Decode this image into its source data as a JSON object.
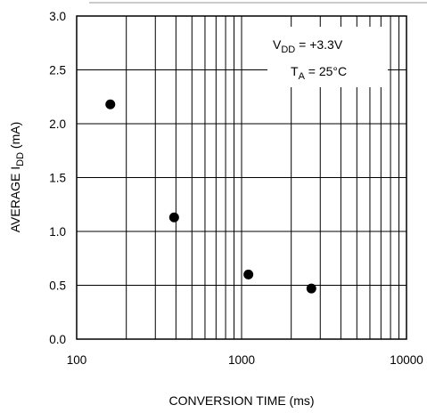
{
  "chart_data": {
    "type": "scatter",
    "x_scale": "log",
    "y_scale": "linear",
    "xlim": [
      100,
      10000
    ],
    "ylim": [
      0,
      3.0
    ],
    "grid": true,
    "xlabel": "CONVERSION TIME (ms)",
    "ylabel_main": "AVERAGE I",
    "ylabel_sub": "DD",
    "ylabel_unit": " (mA)",
    "x_ticks": [
      {
        "value": 100,
        "label": "100"
      },
      {
        "value": 1000,
        "label": "1000"
      },
      {
        "value": 10000,
        "label": "10000"
      }
    ],
    "y_ticks": [
      {
        "value": 0,
        "label": "0.0"
      },
      {
        "value": 0.5,
        "label": "0.5"
      },
      {
        "value": 1.0,
        "label": "1.0"
      },
      {
        "value": 1.5,
        "label": "1.5"
      },
      {
        "value": 2.0,
        "label": "2.0"
      },
      {
        "value": 2.5,
        "label": "2.5"
      },
      {
        "value": 3.0,
        "label": "3.0"
      }
    ],
    "points": [
      {
        "x": 160,
        "y": 2.18
      },
      {
        "x": 390,
        "y": 1.13
      },
      {
        "x": 1100,
        "y": 0.6
      },
      {
        "x": 2650,
        "y": 0.47
      }
    ],
    "annotations": {
      "line1": {
        "main": "V",
        "sub": "DD",
        "rest": " = +3.3V"
      },
      "line2": {
        "main": "T",
        "sub": "A",
        "rest": " = 25°C"
      }
    },
    "colors": {
      "line": "#000000",
      "marker": "#000000",
      "background": "#ffffff"
    }
  }
}
